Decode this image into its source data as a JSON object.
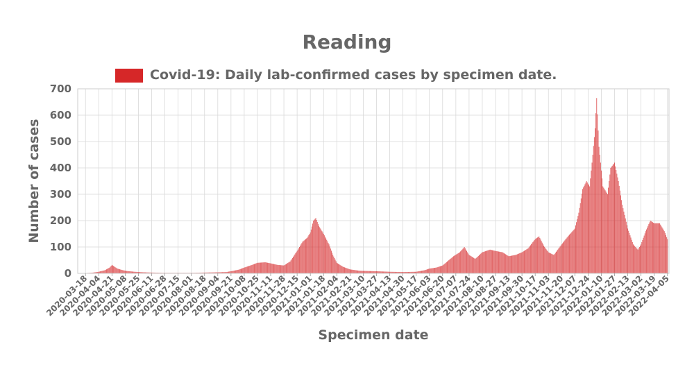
{
  "chart_data": {
    "type": "bar",
    "title": "Reading",
    "xlabel": "Specimen date",
    "ylabel": "Number of cases",
    "ylim": [
      0,
      700
    ],
    "yticks": [
      0,
      100,
      200,
      300,
      400,
      500,
      600,
      700
    ],
    "grid": true,
    "legend_position": "top-center",
    "x_start": "2020-03-08",
    "x_end": "2022-04-07",
    "xticks": [
      "2020-03-18",
      "2020-04-04",
      "2020-04-21",
      "2020-05-08",
      "2020-05-25",
      "2020-06-11",
      "2020-06-28",
      "2020-07-15",
      "2020-08-01",
      "2020-08-18",
      "2020-09-04",
      "2020-09-21",
      "2020-10-08",
      "2020-10-25",
      "2020-11-11",
      "2020-11-28",
      "2020-12-15",
      "2021-01-01",
      "2021-01-18",
      "2021-02-04",
      "2021-02-21",
      "2021-03-10",
      "2021-03-27",
      "2021-04-13",
      "2021-04-30",
      "2021-05-17",
      "2021-06-03",
      "2021-06-20",
      "2021-07-07",
      "2021-07-24",
      "2021-08-10",
      "2021-08-27",
      "2021-09-13",
      "2021-09-30",
      "2021-10-17",
      "2021-11-03",
      "2021-11-20",
      "2021-12-07",
      "2021-12-24",
      "2022-01-10",
      "2022-01-27",
      "2022-02-13",
      "2022-03-02",
      "2022-03-19",
      "2022-04-05"
    ],
    "series": [
      {
        "name": "Covid-19: Daily lab-confirmed cases by specimen date.",
        "color": "#d62728",
        "points": [
          [
            "2020-03-18",
            1
          ],
          [
            "2020-03-28",
            3
          ],
          [
            "2020-04-04",
            6
          ],
          [
            "2020-04-12",
            12
          ],
          [
            "2020-04-18",
            22
          ],
          [
            "2020-04-21",
            32
          ],
          [
            "2020-04-28",
            18
          ],
          [
            "2020-05-05",
            12
          ],
          [
            "2020-05-10",
            9
          ],
          [
            "2020-05-20",
            6
          ],
          [
            "2020-06-01",
            4
          ],
          [
            "2020-06-11",
            3
          ],
          [
            "2020-06-28",
            2
          ],
          [
            "2020-07-15",
            2
          ],
          [
            "2020-08-01",
            2
          ],
          [
            "2020-08-18",
            3
          ],
          [
            "2020-09-04",
            4
          ],
          [
            "2020-09-15",
            5
          ],
          [
            "2020-09-21",
            8
          ],
          [
            "2020-10-01",
            14
          ],
          [
            "2020-10-08",
            22
          ],
          [
            "2020-10-18",
            32
          ],
          [
            "2020-10-25",
            40
          ],
          [
            "2020-11-04",
            42
          ],
          [
            "2020-11-11",
            38
          ],
          [
            "2020-11-20",
            32
          ],
          [
            "2020-11-28",
            30
          ],
          [
            "2020-12-06",
            45
          ],
          [
            "2020-12-15",
            85
          ],
          [
            "2020-12-22",
            120
          ],
          [
            "2020-12-28",
            135
          ],
          [
            "2021-01-01",
            155
          ],
          [
            "2021-01-05",
            200
          ],
          [
            "2021-01-08",
            210
          ],
          [
            "2021-01-12",
            180
          ],
          [
            "2021-01-18",
            150
          ],
          [
            "2021-01-25",
            110
          ],
          [
            "2021-01-30",
            70
          ],
          [
            "2021-02-04",
            40
          ],
          [
            "2021-02-12",
            25
          ],
          [
            "2021-02-21",
            15
          ],
          [
            "2021-03-05",
            10
          ],
          [
            "2021-03-27",
            8
          ],
          [
            "2021-04-13",
            6
          ],
          [
            "2021-04-30",
            5
          ],
          [
            "2021-05-17",
            6
          ],
          [
            "2021-05-28",
            12
          ],
          [
            "2021-06-03",
            18
          ],
          [
            "2021-06-12",
            22
          ],
          [
            "2021-06-20",
            30
          ],
          [
            "2021-06-28",
            50
          ],
          [
            "2021-07-04",
            65
          ],
          [
            "2021-07-12",
            80
          ],
          [
            "2021-07-18",
            100
          ],
          [
            "2021-07-24",
            70
          ],
          [
            "2021-08-01",
            55
          ],
          [
            "2021-08-10",
            80
          ],
          [
            "2021-08-20",
            90
          ],
          [
            "2021-08-27",
            85
          ],
          [
            "2021-09-05",
            80
          ],
          [
            "2021-09-13",
            65
          ],
          [
            "2021-09-22",
            70
          ],
          [
            "2021-09-30",
            80
          ],
          [
            "2021-10-08",
            95
          ],
          [
            "2021-10-17",
            130
          ],
          [
            "2021-10-22",
            140
          ],
          [
            "2021-10-28",
            105
          ],
          [
            "2021-11-03",
            80
          ],
          [
            "2021-11-10",
            70
          ],
          [
            "2021-11-20",
            110
          ],
          [
            "2021-11-28",
            140
          ],
          [
            "2021-12-07",
            170
          ],
          [
            "2021-12-12",
            230
          ],
          [
            "2021-12-17",
            320
          ],
          [
            "2021-12-22",
            350
          ],
          [
            "2021-12-26",
            330
          ],
          [
            "2021-12-30",
            450
          ],
          [
            "2022-01-02",
            550
          ],
          [
            "2022-01-04",
            665
          ],
          [
            "2022-01-07",
            480
          ],
          [
            "2022-01-12",
            330
          ],
          [
            "2022-01-18",
            300
          ],
          [
            "2022-01-22",
            400
          ],
          [
            "2022-01-27",
            420
          ],
          [
            "2022-02-01",
            350
          ],
          [
            "2022-02-06",
            260
          ],
          [
            "2022-02-13",
            170
          ],
          [
            "2022-02-20",
            110
          ],
          [
            "2022-02-26",
            90
          ],
          [
            "2022-03-02",
            110
          ],
          [
            "2022-03-08",
            160
          ],
          [
            "2022-03-14",
            200
          ],
          [
            "2022-03-19",
            190
          ],
          [
            "2022-03-26",
            190
          ],
          [
            "2022-04-01",
            160
          ],
          [
            "2022-04-05",
            130
          ]
        ]
      }
    ]
  }
}
